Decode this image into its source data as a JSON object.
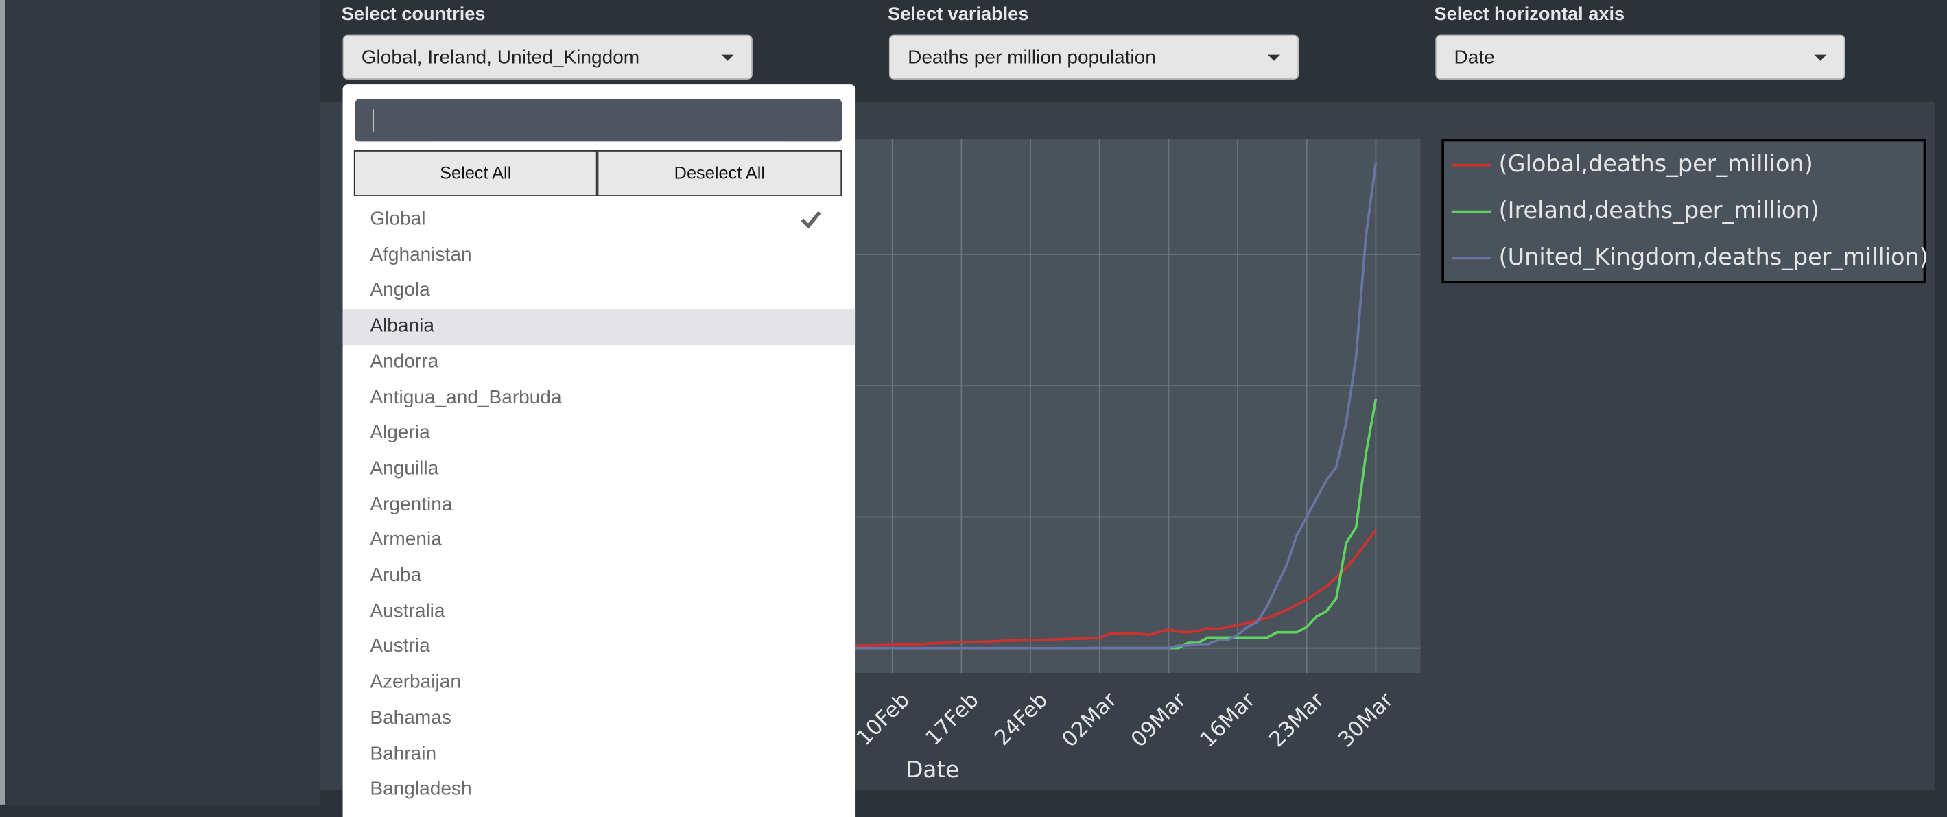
{
  "filters": [
    {
      "label": "Select countries",
      "value": "Global, Ireland, United_Kingdom"
    },
    {
      "label": "Select variables",
      "value": "Deaths per million population"
    },
    {
      "label": "Select horizontal axis",
      "value": "Date"
    }
  ],
  "dropdown": {
    "select_all": "Select All",
    "deselect_all": "Deselect All",
    "options": [
      "Global",
      "Afghanistan",
      "Angola",
      "Albania",
      "Andorra",
      "Antigua_and_Barbuda",
      "Algeria",
      "Anguilla",
      "Argentina",
      "Armenia",
      "Aruba",
      "Australia",
      "Austria",
      "Azerbaijan",
      "Bahamas",
      "Bahrain",
      "Bangladesh"
    ]
  },
  "chart_data": {
    "type": "line",
    "xlabel": "Date",
    "grid": true,
    "x": [
      "03Feb",
      "04Feb",
      "05Feb",
      "06Feb",
      "07Feb",
      "08Feb",
      "09Feb",
      "10Feb",
      "11Feb",
      "12Feb",
      "13Feb",
      "14Feb",
      "15Feb",
      "16Feb",
      "17Feb",
      "18Feb",
      "19Feb",
      "20Feb",
      "21Feb",
      "22Feb",
      "23Feb",
      "24Feb",
      "25Feb",
      "26Feb",
      "27Feb",
      "28Feb",
      "29Feb",
      "01Mar",
      "02Mar",
      "03Mar",
      "04Mar",
      "05Mar",
      "06Mar",
      "07Mar",
      "08Mar",
      "09Mar",
      "10Mar",
      "11Mar",
      "12Mar",
      "13Mar",
      "14Mar",
      "15Mar",
      "16Mar",
      "17Mar",
      "18Mar",
      "19Mar",
      "20Mar",
      "21Mar",
      "22Mar",
      "23Mar",
      "24Mar",
      "25Mar",
      "26Mar",
      "27Mar",
      "28Mar",
      "29Mar",
      "30Mar"
    ],
    "xticks": [
      "10Feb",
      "17Feb",
      "24Feb",
      "02Mar",
      "09Mar",
      "16Mar",
      "23Mar",
      "30Mar"
    ],
    "ylim": [
      -0.95,
      19.4
    ],
    "yticks": [
      0,
      5,
      10,
      15
    ],
    "series": [
      {
        "name": "(Global,deaths_per_million)",
        "color": "#d0312d",
        "values": [
          0.05,
          0.06,
          0.07,
          0.08,
          0.09,
          0.1,
          0.11,
          0.12,
          0.13,
          0.14,
          0.15,
          0.18,
          0.19,
          0.21,
          0.22,
          0.23,
          0.24,
          0.25,
          0.27,
          0.28,
          0.29,
          0.3,
          0.31,
          0.32,
          0.34,
          0.35,
          0.36,
          0.37,
          0.38,
          0.55,
          0.55,
          0.57,
          0.55,
          0.5,
          0.6,
          0.7,
          0.62,
          0.6,
          0.65,
          0.75,
          0.72,
          0.8,
          0.88,
          0.95,
          1.05,
          1.15,
          1.3,
          1.45,
          1.65,
          1.85,
          2.1,
          2.35,
          2.7,
          3.05,
          3.5,
          4.0,
          4.5
        ]
      },
      {
        "name": "(Ireland,deaths_per_million)",
        "color": "#5fd35f",
        "values": [
          null,
          null,
          null,
          null,
          null,
          null,
          null,
          null,
          null,
          null,
          null,
          null,
          null,
          null,
          null,
          null,
          null,
          null,
          null,
          null,
          null,
          null,
          null,
          null,
          null,
          null,
          null,
          0,
          0,
          0,
          0,
          0,
          0,
          0,
          0,
          0,
          0,
          0.2,
          0.2,
          0.4,
          0.4,
          0.4,
          0.4,
          0.4,
          0.4,
          0.4,
          0.6,
          0.6,
          0.6,
          0.8,
          1.2,
          1.4,
          1.9,
          4.0,
          4.6,
          7.4,
          9.5
        ]
      },
      {
        "name": "(United_Kingdom,deaths_per_million)",
        "color": "#6874a6",
        "values": [
          0,
          0,
          0,
          0,
          0,
          0,
          0,
          0,
          0,
          0,
          0,
          0,
          0,
          0,
          0,
          0,
          0,
          0,
          0,
          0,
          0,
          0,
          0,
          0,
          0,
          0,
          0,
          0,
          0,
          0,
          0,
          0,
          0,
          0,
          0,
          0,
          0.1,
          0.1,
          0.15,
          0.15,
          0.3,
          0.3,
          0.5,
          0.8,
          1.0,
          1.6,
          2.4,
          3.2,
          4.3,
          5.0,
          5.7,
          6.4,
          6.9,
          8.6,
          11.1,
          15.7,
          18.5
        ]
      }
    ]
  }
}
